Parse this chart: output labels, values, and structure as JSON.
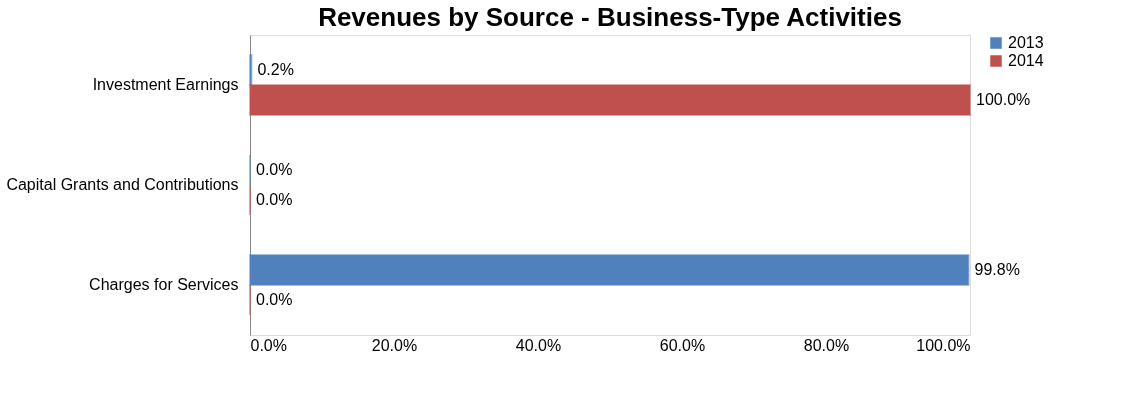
{
  "chart_data": {
    "type": "bar",
    "orientation": "horizontal",
    "title": "Revenues by Source - Business-Type  Activities",
    "categories": [
      "Investment Earnings",
      "Capital Grants and Contributions",
      "Charges for Services"
    ],
    "series": [
      {
        "name": "2013",
        "color": "#4f81bd",
        "values": [
          0.2,
          0.0,
          99.8
        ],
        "value_labels": [
          "0.2%",
          "0.0%",
          "99.8%"
        ]
      },
      {
        "name": "2014",
        "color": "#c0504d",
        "values": [
          100.0,
          0.0,
          0.0
        ],
        "value_labels": [
          "100.0%",
          "0.0%",
          "0.0%"
        ]
      }
    ],
    "xlim": [
      0,
      100
    ],
    "xticks": [
      {
        "value": 0,
        "label": "0.0%"
      },
      {
        "value": 20,
        "label": "20.0%"
      },
      {
        "value": 40,
        "label": "40.0%"
      },
      {
        "value": 60,
        "label": "60.0%"
      },
      {
        "value": 80,
        "label": "80.0%"
      },
      {
        "value": 100,
        "label": "100.0%"
      }
    ],
    "grid": false,
    "legend": "top right"
  }
}
